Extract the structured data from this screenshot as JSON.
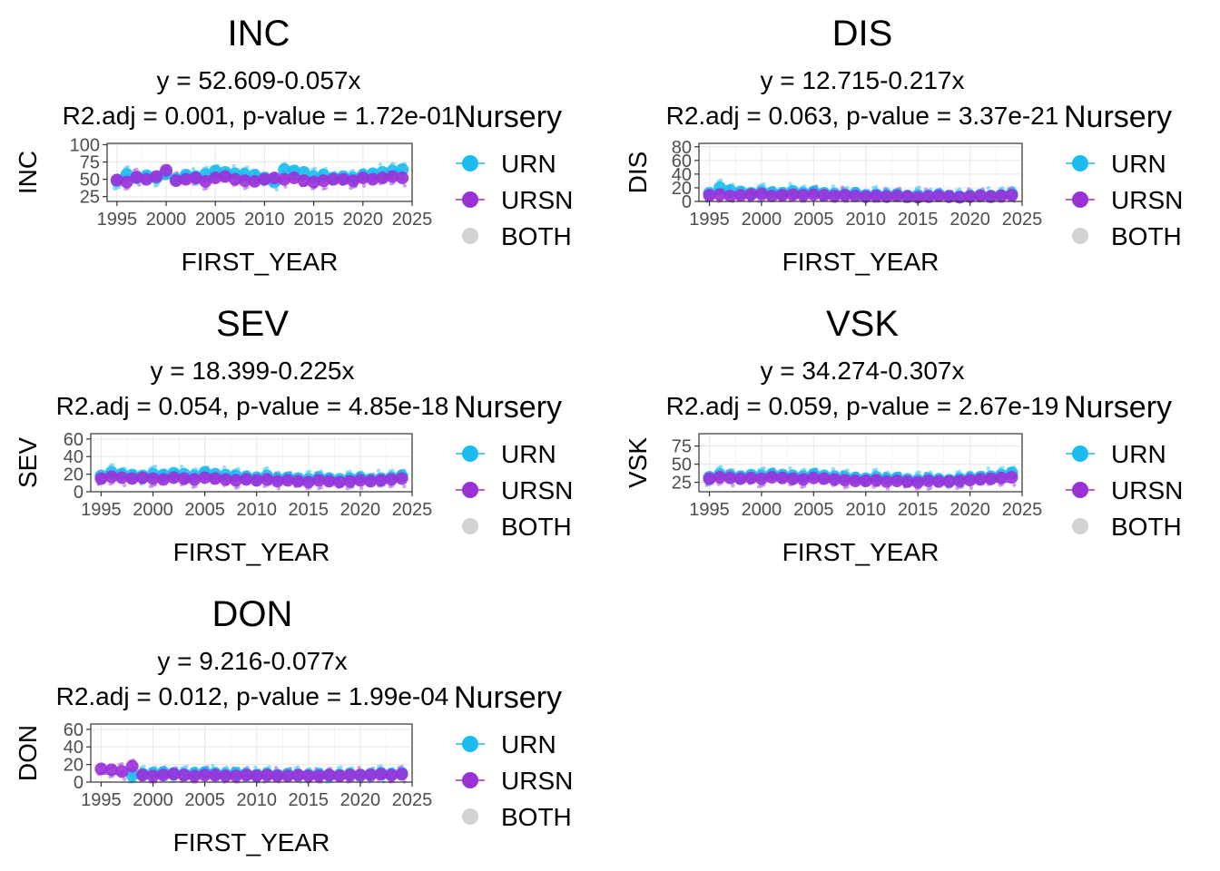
{
  "legend": {
    "title": "Nursery",
    "items": [
      {
        "label": "URN",
        "color": "#1ABCF0"
      },
      {
        "label": "URSN",
        "color": "#9B30D9"
      },
      {
        "label": "BOTH",
        "color": "#D3D3D3"
      }
    ]
  },
  "chart_data": [
    {
      "type": "scatter",
      "title": "INC",
      "equation": "y = 52.609-0.057x",
      "stats": "R2.adj = 0.001, p-value = 1.72e-01",
      "xlabel": "FIRST_YEAR",
      "ylabel": "INC",
      "xlim": [
        1994,
        2025
      ],
      "ylim": [
        18,
        102
      ],
      "xticks": [
        1995,
        2000,
        2005,
        2010,
        2015,
        2020,
        2025
      ],
      "yticks": [
        25,
        50,
        75,
        100
      ],
      "trend": {
        "intercept": 52.609,
        "slope": -0.057
      },
      "series": [
        {
          "name": "URN",
          "x": [
            1995,
            1996,
            1997,
            1998,
            1999,
            2000,
            2001,
            2002,
            2003,
            2004,
            2005,
            2006,
            2007,
            2008,
            2009,
            2010,
            2011,
            2012,
            2013,
            2014,
            2015,
            2016,
            2017,
            2018,
            2019,
            2020,
            2021,
            2022,
            2023,
            2024
          ],
          "y": [
            48,
            57,
            52,
            55,
            52,
            58,
            50,
            56,
            54,
            57,
            62,
            60,
            58,
            57,
            56,
            52,
            46,
            64,
            62,
            60,
            54,
            56,
            52,
            54,
            52,
            56,
            58,
            60,
            62,
            64
          ]
        },
        {
          "name": "URSN",
          "x": [
            1995,
            1996,
            1997,
            1998,
            1999,
            2000,
            2001,
            2002,
            2003,
            2004,
            2005,
            2006,
            2007,
            2008,
            2009,
            2010,
            2011,
            2012,
            2013,
            2014,
            2015,
            2016,
            2017,
            2018,
            2019,
            2020,
            2021,
            2022,
            2023,
            2024
          ],
          "y": [
            49,
            46,
            53,
            50,
            54,
            63,
            48,
            50,
            52,
            47,
            52,
            54,
            50,
            48,
            47,
            50,
            52,
            50,
            52,
            48,
            46,
            48,
            50,
            50,
            48,
            52,
            50,
            52,
            54,
            52
          ]
        }
      ]
    },
    {
      "type": "scatter",
      "title": "DIS",
      "equation": "y = 12.715-0.217x",
      "stats": "R2.adj = 0.063, p-value = 3.37e-21",
      "xlabel": "FIRST_YEAR",
      "ylabel": "DIS",
      "xlim": [
        1994,
        2025
      ],
      "ylim": [
        0,
        85
      ],
      "xticks": [
        1995,
        2000,
        2005,
        2010,
        2015,
        2020,
        2025
      ],
      "yticks": [
        0,
        20,
        40,
        60,
        80
      ],
      "trend": {
        "intercept": 12.715,
        "slope": -0.217
      },
      "series": [
        {
          "name": "URN",
          "x": [
            1995,
            1996,
            1997,
            1998,
            1999,
            2000,
            2001,
            2002,
            2003,
            2004,
            2005,
            2006,
            2007,
            2008,
            2009,
            2010,
            2011,
            2012,
            2013,
            2014,
            2015,
            2016,
            2017,
            2018,
            2019,
            2020,
            2021,
            2022,
            2023,
            2024
          ],
          "y": [
            12,
            20,
            16,
            14,
            12,
            14,
            13,
            12,
            15,
            12,
            14,
            12,
            11,
            10,
            12,
            9,
            10,
            9,
            10,
            8,
            9,
            8,
            10,
            8,
            7,
            8,
            9,
            8,
            9,
            11
          ]
        },
        {
          "name": "URSN",
          "x": [
            1995,
            1996,
            1997,
            1998,
            1999,
            2000,
            2001,
            2002,
            2003,
            2004,
            2005,
            2006,
            2007,
            2008,
            2009,
            2010,
            2011,
            2012,
            2013,
            2014,
            2015,
            2016,
            2017,
            2018,
            2019,
            2020,
            2021,
            2022,
            2023,
            2024
          ],
          "y": [
            9,
            10,
            8,
            9,
            10,
            11,
            8,
            9,
            10,
            9,
            10,
            9,
            8,
            9,
            8,
            7,
            8,
            7,
            8,
            7,
            6,
            7,
            8,
            7,
            6,
            7,
            8,
            7,
            8,
            9
          ]
        }
      ]
    },
    {
      "type": "scatter",
      "title": "SEV",
      "equation": "y = 18.399-0.225x",
      "stats": "R2.adj = 0.054, p-value = 4.85e-18",
      "xlabel": "FIRST_YEAR",
      "ylabel": "SEV",
      "xlim": [
        1994,
        2025
      ],
      "ylim": [
        0,
        66
      ],
      "xticks": [
        1995,
        2000,
        2005,
        2010,
        2015,
        2020,
        2025
      ],
      "yticks": [
        0,
        20,
        40,
        60
      ],
      "trend": {
        "intercept": 18.399,
        "slope": -0.225
      },
      "series": [
        {
          "name": "URN",
          "x": [
            1995,
            1996,
            1997,
            1998,
            1999,
            2000,
            2001,
            2002,
            2003,
            2004,
            2005,
            2006,
            2007,
            2008,
            2009,
            2010,
            2011,
            2012,
            2013,
            2014,
            2015,
            2016,
            2017,
            2018,
            2019,
            2020,
            2021,
            2022,
            2023,
            2024
          ],
          "y": [
            18,
            22,
            20,
            19,
            18,
            20,
            19,
            21,
            20,
            18,
            22,
            20,
            19,
            18,
            17,
            16,
            18,
            15,
            16,
            15,
            14,
            16,
            15,
            14,
            15,
            16,
            14,
            15,
            16,
            18
          ]
        },
        {
          "name": "URSN",
          "x": [
            1995,
            1996,
            1997,
            1998,
            1999,
            2000,
            2001,
            2002,
            2003,
            2004,
            2005,
            2006,
            2007,
            2008,
            2009,
            2010,
            2011,
            2012,
            2013,
            2014,
            2015,
            2016,
            2017,
            2018,
            2019,
            2020,
            2021,
            2022,
            2023,
            2024
          ],
          "y": [
            15,
            17,
            16,
            15,
            16,
            15,
            14,
            16,
            15,
            14,
            16,
            15,
            14,
            13,
            14,
            13,
            14,
            12,
            13,
            12,
            11,
            13,
            12,
            11,
            12,
            13,
            12,
            13,
            14,
            15
          ]
        }
      ]
    },
    {
      "type": "scatter",
      "title": "VSK",
      "equation": "y = 34.274-0.307x",
      "stats": "R2.adj = 0.059, p-value = 2.67e-19",
      "xlabel": "FIRST_YEAR",
      "ylabel": "VSK",
      "xlim": [
        1994,
        2025
      ],
      "ylim": [
        12,
        92
      ],
      "xticks": [
        1995,
        2000,
        2005,
        2010,
        2015,
        2020,
        2025
      ],
      "yticks": [
        25,
        50,
        75
      ],
      "trend": {
        "intercept": 34.274,
        "slope": -0.307
      },
      "series": [
        {
          "name": "URN",
          "x": [
            1995,
            1996,
            1997,
            1998,
            1999,
            2000,
            2001,
            2002,
            2003,
            2004,
            2005,
            2006,
            2007,
            2008,
            2009,
            2010,
            2011,
            2012,
            2013,
            2014,
            2015,
            2016,
            2017,
            2018,
            2019,
            2020,
            2021,
            2022,
            2023,
            2024
          ],
          "y": [
            32,
            36,
            34,
            33,
            35,
            34,
            36,
            35,
            34,
            33,
            36,
            34,
            33,
            32,
            31,
            30,
            32,
            30,
            31,
            29,
            28,
            30,
            29,
            28,
            30,
            31,
            32,
            33,
            35,
            38
          ]
        },
        {
          "name": "URSN",
          "x": [
            1995,
            1996,
            1997,
            1998,
            1999,
            2000,
            2001,
            2002,
            2003,
            2004,
            2005,
            2006,
            2007,
            2008,
            2009,
            2010,
            2011,
            2012,
            2013,
            2014,
            2015,
            2016,
            2017,
            2018,
            2019,
            2020,
            2021,
            2022,
            2023,
            2024
          ],
          "y": [
            30,
            32,
            31,
            30,
            31,
            30,
            32,
            31,
            30,
            29,
            31,
            30,
            29,
            28,
            27,
            27,
            28,
            26,
            27,
            26,
            25,
            27,
            26,
            26,
            27,
            28,
            29,
            30,
            31,
            32
          ]
        }
      ]
    },
    {
      "type": "scatter",
      "title": "DON",
      "equation": "y = 9.216-0.077x",
      "stats": "R2.adj = 0.012, p-value = 1.99e-04",
      "xlabel": "FIRST_YEAR",
      "ylabel": "DON",
      "xlim": [
        1994,
        2025
      ],
      "ylim": [
        0,
        66
      ],
      "xticks": [
        1995,
        2000,
        2005,
        2010,
        2015,
        2020,
        2025
      ],
      "yticks": [
        0,
        20,
        40,
        60
      ],
      "trend": {
        "intercept": 9.216,
        "slope": -0.077
      },
      "series": [
        {
          "name": "URN",
          "x": [
            1998,
            1999,
            2000,
            2001,
            2002,
            2003,
            2004,
            2005,
            2006,
            2007,
            2008,
            2009,
            2010,
            2011,
            2012,
            2013,
            2014,
            2015,
            2016,
            2017,
            2018,
            2019,
            2020,
            2021,
            2022,
            2023,
            2024
          ],
          "y": [
            8,
            9,
            10,
            11,
            10,
            9,
            10,
            11,
            10,
            9,
            10,
            9,
            8,
            9,
            8,
            9,
            8,
            8,
            9,
            8,
            8,
            9,
            8,
            9,
            10,
            9,
            10
          ]
        },
        {
          "name": "URSN",
          "x": [
            1995,
            1996,
            1997,
            1998,
            1999,
            2000,
            2001,
            2002,
            2003,
            2004,
            2005,
            2006,
            2007,
            2008,
            2009,
            2010,
            2011,
            2012,
            2013,
            2014,
            2015,
            2016,
            2017,
            2018,
            2019,
            2020,
            2021,
            2022,
            2023,
            2024
          ],
          "y": [
            15,
            14,
            12,
            18,
            8,
            7,
            8,
            9,
            8,
            7,
            8,
            8,
            7,
            7,
            8,
            7,
            8,
            7,
            7,
            8,
            7,
            7,
            8,
            7,
            8,
            8,
            8,
            9,
            8,
            9
          ]
        }
      ]
    }
  ]
}
